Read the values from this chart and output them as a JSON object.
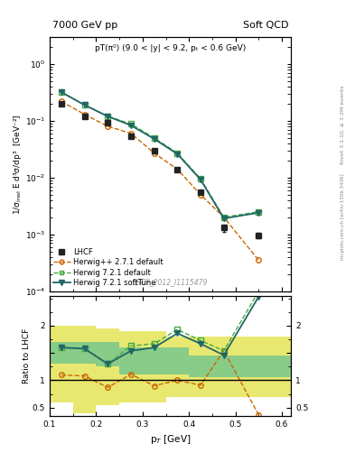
{
  "title_left": "7000 GeV pp",
  "title_right": "Soft QCD",
  "annotation": "pT(π⁰) (9.0 < |y| < 9.2, pₜ < 0.6 GeV)",
  "watermark": "LHCF_2012_I1115479",
  "right_label_top": "Rivet 3.1.10, ≥ 3.2M events",
  "right_label_bottom": "mcplots.cern.ch [arXiv:1306.3436]",
  "ylabel_main": "1/σ$_{\\mathregular{inel}}$ E d³σ/dp³  [GeV⁻²]",
  "ylabel_ratio": "Ratio to LHCF",
  "xlabel": "p$_T$ [GeV]",
  "xlim": [
    0.1,
    0.62
  ],
  "ylim_main": [
    0.0001,
    3.0
  ],
  "ylim_ratio": [
    0.35,
    2.55
  ],
  "lhcf_x": [
    0.125,
    0.175,
    0.225,
    0.275,
    0.325,
    0.375,
    0.425,
    0.475,
    0.55
  ],
  "lhcf_y": [
    0.2,
    0.12,
    0.092,
    0.054,
    0.03,
    0.014,
    0.0055,
    0.0013,
    0.00095
  ],
  "lhcf_yerr": [
    0.015,
    0.009,
    0.007,
    0.004,
    0.002,
    0.001,
    0.0004,
    0.0002,
    0.0001
  ],
  "herwig_pp_x": [
    0.125,
    0.175,
    0.225,
    0.275,
    0.325,
    0.375,
    0.425,
    0.475,
    0.55
  ],
  "herwig_pp_y": [
    0.22,
    0.13,
    0.08,
    0.06,
    0.027,
    0.014,
    0.005,
    0.002,
    0.00035
  ],
  "herwig72_def_x": [
    0.125,
    0.175,
    0.225,
    0.275,
    0.325,
    0.375,
    0.425,
    0.475,
    0.55
  ],
  "herwig72_def_y": [
    0.32,
    0.19,
    0.12,
    0.088,
    0.05,
    0.027,
    0.0095,
    0.002,
    0.0025
  ],
  "herwig72_soft_x": [
    0.125,
    0.175,
    0.225,
    0.275,
    0.325,
    0.375,
    0.425,
    0.475,
    0.55
  ],
  "herwig72_soft_y": [
    0.32,
    0.19,
    0.12,
    0.083,
    0.048,
    0.026,
    0.0092,
    0.0019,
    0.0024
  ],
  "ratio_pp_y": [
    1.1,
    1.08,
    0.87,
    1.11,
    0.9,
    1.0,
    0.91,
    1.54,
    0.37
  ],
  "ratio_def_y": [
    1.6,
    1.58,
    1.3,
    1.63,
    1.67,
    1.93,
    1.73,
    1.54,
    2.63
  ],
  "ratio_soft_y": [
    1.6,
    1.58,
    1.3,
    1.54,
    1.6,
    1.86,
    1.67,
    1.46,
    2.53
  ],
  "band_x_edges": [
    0.1,
    0.15,
    0.2,
    0.25,
    0.3,
    0.35,
    0.4,
    0.5,
    0.62
  ],
  "band_green_low": [
    1.3,
    1.3,
    1.25,
    1.1,
    1.1,
    1.1,
    1.05,
    1.05
  ],
  "band_green_high": [
    1.7,
    1.7,
    1.7,
    1.6,
    1.6,
    1.6,
    1.45,
    1.45
  ],
  "band_yellow_low": [
    0.6,
    0.4,
    0.55,
    0.6,
    0.6,
    0.7,
    0.7,
    0.7
  ],
  "band_yellow_high": [
    2.0,
    2.0,
    1.95,
    1.9,
    1.9,
    1.8,
    1.8,
    1.8
  ],
  "color_lhcf": "#222222",
  "color_herwig_pp": "#cc6600",
  "color_herwig72_def": "#44aa44",
  "color_herwig72_soft": "#226666",
  "color_band_yellow": "#e8e870",
  "color_band_green": "#88cc88"
}
